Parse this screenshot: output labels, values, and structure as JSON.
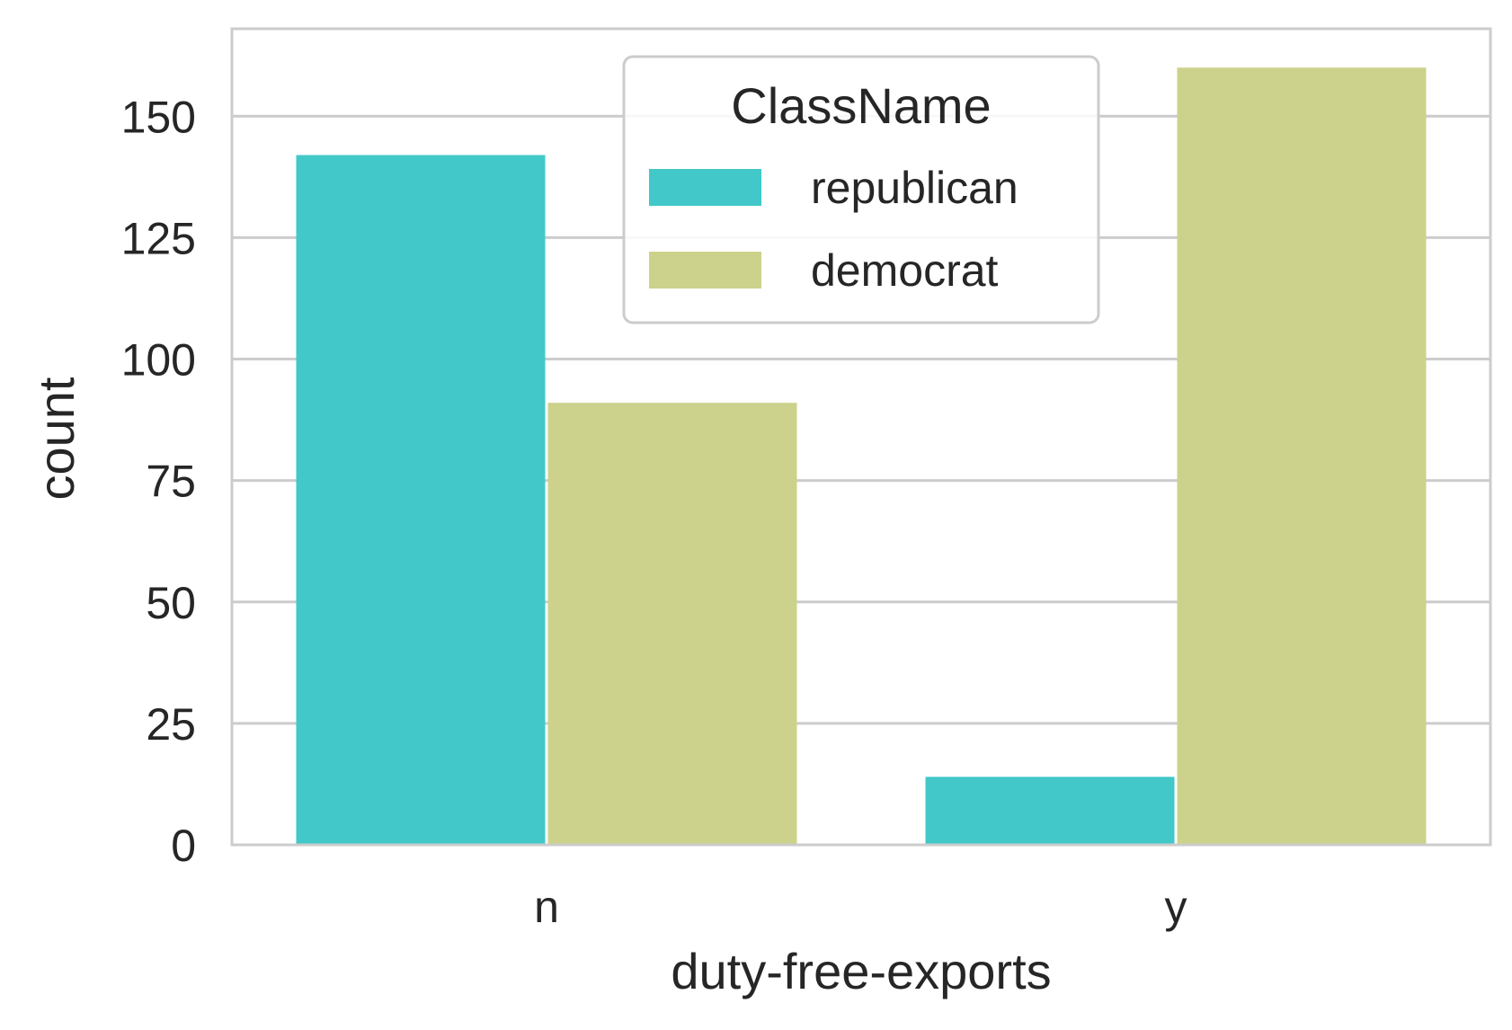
{
  "chart_data": {
    "type": "bar",
    "title": "",
    "xlabel": "duty-free-exports",
    "ylabel": "count",
    "categories": [
      "n",
      "y"
    ],
    "series": [
      {
        "name": "republican",
        "values": [
          142,
          14
        ],
        "color": "#42c8c8"
      },
      {
        "name": "democrat",
        "values": [
          91,
          160
        ],
        "color": "#ccd28b"
      }
    ],
    "ylim": [
      0,
      168
    ],
    "yticks": [
      0,
      25,
      50,
      75,
      100,
      125,
      150
    ],
    "grid": true,
    "legend": {
      "title": "ClassName",
      "position": "top-center"
    }
  }
}
